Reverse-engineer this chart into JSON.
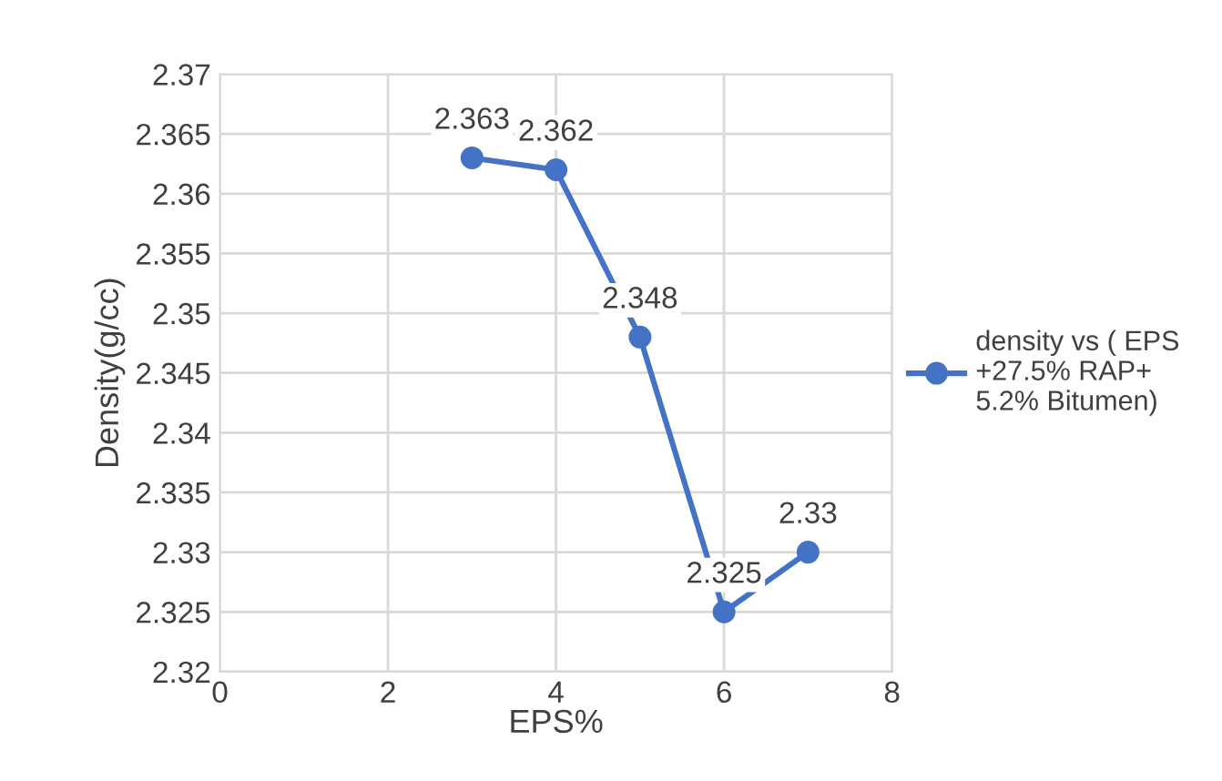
{
  "chart_data": {
    "type": "line",
    "xlabel": "EPS%",
    "ylabel": "Density(g/cc)",
    "x": [
      3,
      4,
      5,
      6,
      7
    ],
    "series": [
      {
        "name": "density vs ( EPS\n+27.5% RAP+\n5.2% Bitumen)",
        "color": "#4472c4",
        "values": [
          2.363,
          2.362,
          2.348,
          2.325,
          2.33
        ]
      }
    ],
    "xlim": [
      0,
      8
    ],
    "xticks": [
      0,
      2,
      4,
      6,
      8
    ],
    "ylim": [
      2.32,
      2.37
    ],
    "yticks": [
      2.32,
      2.325,
      2.33,
      2.335,
      2.34,
      2.345,
      2.35,
      2.355,
      2.36,
      2.365,
      2.37
    ],
    "grid": true,
    "legend": "right",
    "marker": "circle",
    "line_style": "solid",
    "data_labels": true
  }
}
